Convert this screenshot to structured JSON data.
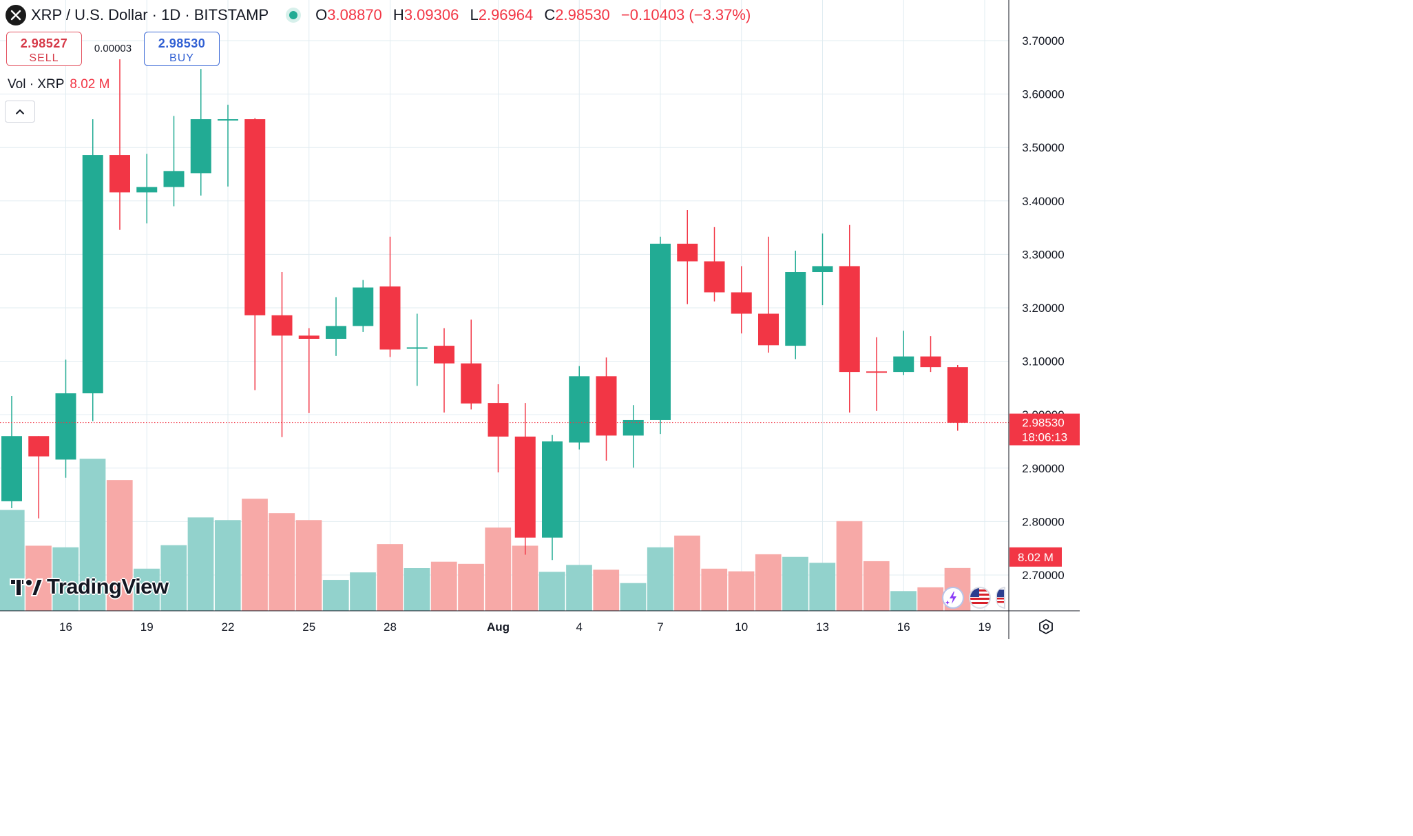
{
  "header": {
    "title": "XRP / U.S. Dollar · 1D · BITSTAMP",
    "ohlc": [
      {
        "key": "O",
        "value": "3.08870"
      },
      {
        "key": "H",
        "value": "3.09306"
      },
      {
        "key": "L",
        "value": "2.96964"
      },
      {
        "key": "C",
        "value": "2.98530"
      }
    ],
    "change": "−0.10403 (−3.37%)"
  },
  "trade": {
    "sell_price": "2.98527",
    "sell_label": "SELL",
    "spread": "0.00003",
    "buy_price": "2.98530",
    "buy_label": "BUY"
  },
  "volume_legend": {
    "label": "Vol · XRP",
    "value": "8.02 M"
  },
  "branding": {
    "logo_text": "TradingView"
  },
  "price_tag": {
    "price": "2.98530",
    "countdown": "18:06:13"
  },
  "volume_tag": {
    "value": "8.02 M"
  },
  "colors": {
    "up": "#22ab94",
    "down": "#f23645",
    "up_volume": "#92d2cc",
    "down_volume": "#f7a9a7",
    "grid": "#e0ecf1"
  },
  "icons": [
    "x-logo-icon",
    "chevron-up-icon",
    "settings-icon",
    "ai-assistant-icon",
    "us-flag-icon"
  ],
  "chart_data": {
    "type": "candlestick",
    "interval": "1D",
    "price_axis": {
      "ticks": [
        "3.70000",
        "3.60000",
        "3.50000",
        "3.40000",
        "3.30000",
        "3.20000",
        "3.10000",
        "3.00000",
        "2.90000",
        "2.80000",
        "2.70000"
      ],
      "range": [
        2.65,
        3.76
      ]
    },
    "x_axis": {
      "labels": [
        {
          "label": "16",
          "index": 2
        },
        {
          "label": "19",
          "index": 5
        },
        {
          "label": "22",
          "index": 8
        },
        {
          "label": "25",
          "index": 11
        },
        {
          "label": "28",
          "index": 14
        },
        {
          "label": "Aug",
          "index": 18
        },
        {
          "label": "4",
          "index": 21
        },
        {
          "label": "7",
          "index": 24
        },
        {
          "label": "10",
          "index": 27
        },
        {
          "label": "13",
          "index": 30
        },
        {
          "label": "16",
          "index": 33
        },
        {
          "label": "19",
          "index": 36
        }
      ]
    },
    "candles": [
      {
        "o": 2.838,
        "h": 3.035,
        "l": 2.825,
        "c": 2.96
      },
      {
        "o": 2.96,
        "h": 2.96,
        "l": 2.806,
        "c": 2.922
      },
      {
        "o": 2.916,
        "h": 3.103,
        "l": 2.882,
        "c": 3.04
      },
      {
        "o": 3.04,
        "h": 3.553,
        "l": 2.988,
        "c": 3.486
      },
      {
        "o": 3.486,
        "h": 3.665,
        "l": 3.346,
        "c": 3.416
      },
      {
        "o": 3.416,
        "h": 3.488,
        "l": 3.358,
        "c": 3.426
      },
      {
        "o": 3.426,
        "h": 3.559,
        "l": 3.39,
        "c": 3.456
      },
      {
        "o": 3.452,
        "h": 3.647,
        "l": 3.41,
        "c": 3.553
      },
      {
        "o": 3.553,
        "h": 3.58,
        "l": 3.427,
        "c": 3.553
      },
      {
        "o": 3.553,
        "h": 3.555,
        "l": 3.046,
        "c": 3.186
      },
      {
        "o": 3.186,
        "h": 3.267,
        "l": 2.958,
        "c": 3.148
      },
      {
        "o": 3.148,
        "h": 3.162,
        "l": 3.003,
        "c": 3.142
      },
      {
        "o": 3.142,
        "h": 3.22,
        "l": 3.11,
        "c": 3.166
      },
      {
        "o": 3.166,
        "h": 3.252,
        "l": 3.155,
        "c": 3.238
      },
      {
        "o": 3.24,
        "h": 3.333,
        "l": 3.108,
        "c": 3.122
      },
      {
        "o": 3.125,
        "h": 3.189,
        "l": 3.054,
        "c": 3.126
      },
      {
        "o": 3.129,
        "h": 3.162,
        "l": 3.004,
        "c": 3.096
      },
      {
        "o": 3.096,
        "h": 3.178,
        "l": 3.01,
        "c": 3.021
      },
      {
        "o": 3.022,
        "h": 3.057,
        "l": 2.892,
        "c": 2.959
      },
      {
        "o": 2.959,
        "h": 3.022,
        "l": 2.738,
        "c": 2.77
      },
      {
        "o": 2.77,
        "h": 2.962,
        "l": 2.728,
        "c": 2.95
      },
      {
        "o": 2.948,
        "h": 3.091,
        "l": 2.935,
        "c": 3.072
      },
      {
        "o": 3.072,
        "h": 3.107,
        "l": 2.914,
        "c": 2.961
      },
      {
        "o": 2.961,
        "h": 3.018,
        "l": 2.901,
        "c": 2.99
      },
      {
        "o": 2.99,
        "h": 3.333,
        "l": 2.964,
        "c": 3.32
      },
      {
        "o": 3.32,
        "h": 3.383,
        "l": 3.207,
        "c": 3.287
      },
      {
        "o": 3.287,
        "h": 3.351,
        "l": 3.212,
        "c": 3.229
      },
      {
        "o": 3.229,
        "h": 3.278,
        "l": 3.152,
        "c": 3.189
      },
      {
        "o": 3.189,
        "h": 3.333,
        "l": 3.116,
        "c": 3.13
      },
      {
        "o": 3.129,
        "h": 3.307,
        "l": 3.104,
        "c": 3.267
      },
      {
        "o": 3.267,
        "h": 3.339,
        "l": 3.205,
        "c": 3.278
      },
      {
        "o": 3.278,
        "h": 3.355,
        "l": 3.004,
        "c": 3.08
      },
      {
        "o": 3.081,
        "h": 3.145,
        "l": 3.007,
        "c": 3.08
      },
      {
        "o": 3.08,
        "h": 3.157,
        "l": 3.074,
        "c": 3.109
      },
      {
        "o": 3.109,
        "h": 3.147,
        "l": 3.08,
        "c": 3.089
      },
      {
        "o": 3.089,
        "h": 3.093,
        "l": 2.97,
        "c": 2.985
      }
    ],
    "volume": {
      "values": [
        18.9,
        12.2,
        11.9,
        28.5,
        24.5,
        7.9,
        12.3,
        17.5,
        17.0,
        21.0,
        18.3,
        17.0,
        5.8,
        7.2,
        12.5,
        8.0,
        9.2,
        8.8,
        15.6,
        12.2,
        7.3,
        8.6,
        7.7,
        5.2,
        11.9,
        14.1,
        7.9,
        7.4,
        10.6,
        10.1,
        9.0,
        16.8,
        9.3,
        3.7,
        4.4,
        8.02
      ],
      "unit": "M"
    },
    "last_price": 2.9853
  }
}
